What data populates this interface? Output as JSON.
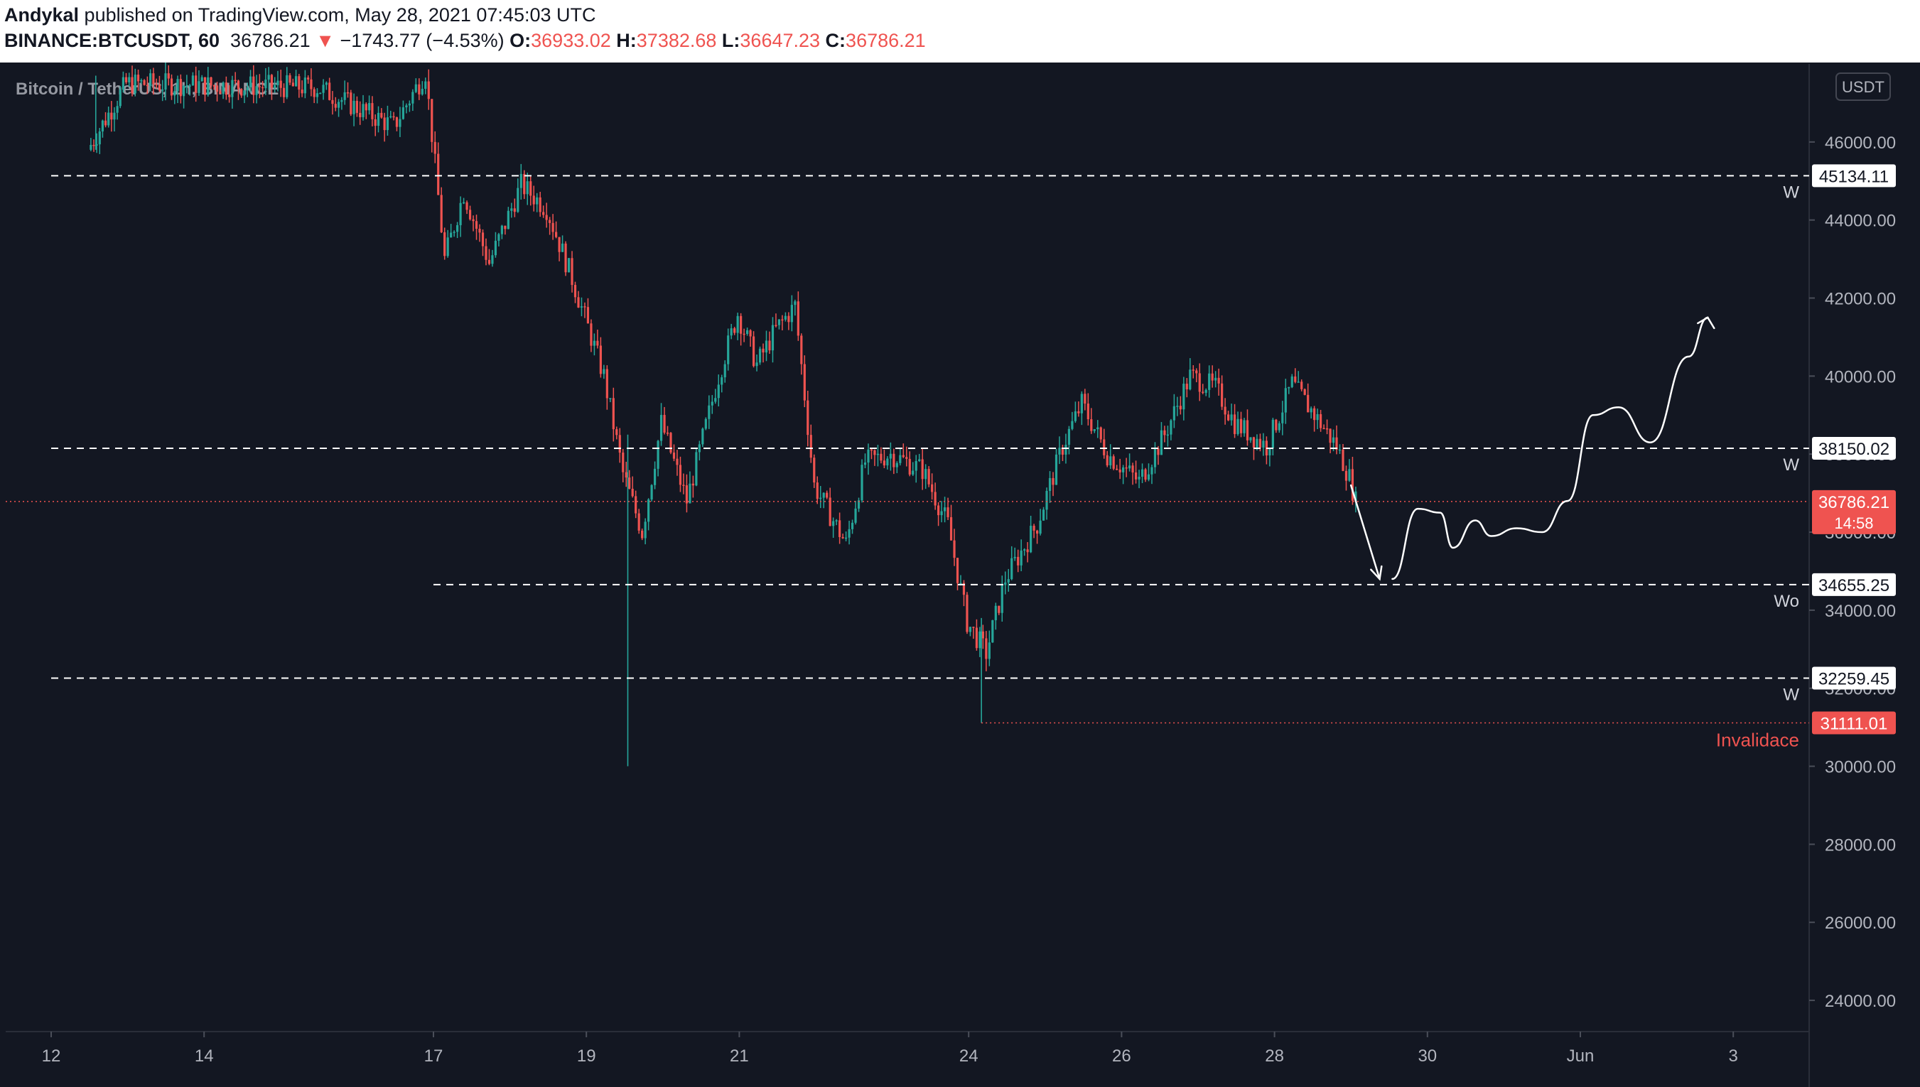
{
  "header": {
    "author": "Andykal",
    "published_text": " published on TradingView.com, May 28, 2021 07:45:03 UTC",
    "symbol": "BINANCE:BTCUSDT, 60",
    "last_price": "36786.21",
    "change_arrow": "▼",
    "change": "−1743.77 (−4.53%)",
    "o_label": "O:",
    "o_value": "36933.02",
    "h_label": "H:",
    "h_value": "37382.68",
    "l_label": "L:",
    "l_value": "36647.23",
    "c_label": "C:",
    "c_value": "36786.21"
  },
  "colors": {
    "background": "#131722",
    "up": "#26a69a",
    "down": "#ef5350",
    "level_line": "#ffffff",
    "axis_text": "#b2b5be",
    "invalidation": "#ef5350"
  },
  "chart_data": {
    "type": "candlestick",
    "title": "Bitcoin / TetherUS, 1h, BINANCE",
    "currency_label": "USDT",
    "ylim": [
      23200,
      48000
    ],
    "y_ticks": [
      24000,
      26000,
      28000,
      30000,
      32000,
      34000,
      36000,
      38000,
      40000,
      42000,
      44000,
      46000
    ],
    "y_tick_labels": [
      "24000.00",
      "26000.00",
      "28000.00",
      "30000.00",
      "32000.00",
      "34000.00",
      "36000.00",
      "38000.00",
      "40000.00",
      "42000.00",
      "44000.00",
      "46000.00"
    ],
    "x_ticks": [
      {
        "label": "12",
        "date": "2021-05-12"
      },
      {
        "label": "14",
        "date": "2021-05-14"
      },
      {
        "label": "17",
        "date": "2021-05-17"
      },
      {
        "label": "19",
        "date": "2021-05-19"
      },
      {
        "label": "21",
        "date": "2021-05-21"
      },
      {
        "label": "24",
        "date": "2021-05-24"
      },
      {
        "label": "26",
        "date": "2021-05-26"
      },
      {
        "label": "28",
        "date": "2021-05-28"
      },
      {
        "label": "30",
        "date": "2021-05-30"
      },
      {
        "label": "Jun",
        "date": "2021-06-01"
      },
      {
        "label": "3",
        "date": "2021-06-03"
      }
    ],
    "price_path": [
      [
        "2021-05-12 12:00",
        45800
      ],
      [
        "2021-05-13 00:00",
        47500
      ],
      [
        "2021-05-15 12:00",
        47400
      ],
      [
        "2021-05-16 12:00",
        46400
      ],
      [
        "2021-05-16 22:00",
        47800
      ],
      [
        "2021-05-17 04:00",
        43000
      ],
      [
        "2021-05-17 10:00",
        44700
      ],
      [
        "2021-05-17 18:00",
        42900
      ],
      [
        "2021-05-18 04:00",
        44900
      ],
      [
        "2021-05-18 12:00",
        44300
      ],
      [
        "2021-05-18 20:00",
        42500
      ],
      [
        "2021-05-19 06:00",
        40000
      ],
      [
        "2021-05-19 12:00",
        37500
      ],
      [
        "2021-05-19 18:00",
        36000
      ],
      [
        "2021-05-20 00:00",
        38800
      ],
      [
        "2021-05-20 08:00",
        36800
      ],
      [
        "2021-05-20 18:00",
        40000
      ],
      [
        "2021-05-21 00:00",
        41600
      ],
      [
        "2021-05-21 06:00",
        40300
      ],
      [
        "2021-05-21 12:00",
        41200
      ],
      [
        "2021-05-21 18:00",
        41800
      ],
      [
        "2021-05-22 00:00",
        37200
      ],
      [
        "2021-05-22 06:00",
        36300
      ],
      [
        "2021-05-22 10:00",
        35700
      ],
      [
        "2021-05-22 16:00",
        37800
      ],
      [
        "2021-05-23 00:00",
        38000
      ],
      [
        "2021-05-23 10:00",
        37600
      ],
      [
        "2021-05-23 18:00",
        36200
      ],
      [
        "2021-05-24 00:00",
        33700
      ],
      [
        "2021-05-24 06:00",
        32900
      ],
      [
        "2021-05-24 12:00",
        34800
      ],
      [
        "2021-05-24 22:00",
        36200
      ],
      [
        "2021-05-25 06:00",
        38200
      ],
      [
        "2021-05-25 12:00",
        39300
      ],
      [
        "2021-05-25 20:00",
        38000
      ],
      [
        "2021-05-26 06:00",
        37300
      ],
      [
        "2021-05-26 14:00",
        38500
      ],
      [
        "2021-05-26 22:00",
        40000
      ],
      [
        "2021-05-27 06:00",
        39700
      ],
      [
        "2021-05-27 12:00",
        38800
      ],
      [
        "2021-05-27 22:00",
        38200
      ],
      [
        "2021-05-28 06:00",
        39800
      ],
      [
        "2021-05-28 14:00",
        38900
      ],
      [
        "2021-05-28 20:00",
        38200
      ],
      [
        "2021-05-29 00:00",
        37400
      ],
      [
        "2021-05-29 02:00",
        36786.21
      ]
    ],
    "spikes": [
      {
        "date": "2021-05-12 14:00",
        "low": 45800,
        "high": 47700
      },
      {
        "date": "2021-05-19 13:00",
        "low": 30000,
        "high": 38500
      },
      {
        "date": "2021-05-24 04:00",
        "low": 31111.01,
        "high": 33800
      }
    ],
    "levels": [
      {
        "value": 45134.11,
        "label": "45134.11",
        "tag": "W",
        "start_date": "2021-05-12 00:00"
      },
      {
        "value": 38150.02,
        "label": "38150.02",
        "tag": "W",
        "start_date": "2021-05-12 00:00"
      },
      {
        "value": 34655.25,
        "label": "34655.25",
        "tag": "Wo",
        "start_date": "2021-05-17 00:00"
      },
      {
        "value": 32259.45,
        "label": "32259.45",
        "tag": "W",
        "start_date": "2021-05-12 00:00"
      }
    ],
    "current_price": {
      "value": 36786.21,
      "label": "36786.21",
      "countdown": "14:58"
    },
    "invalidation": {
      "value": 31111.01,
      "label": "31111.01",
      "text": "Invalidace",
      "start_date": "2021-05-24 04:00"
    },
    "projection_path": [
      [
        "2021-05-29 00:00",
        37200
      ],
      [
        "2021-05-29 09:00",
        34800
      ],
      [
        "2021-05-29 13:00",
        34800
      ],
      [
        "2021-05-29 21:00",
        36600
      ],
      [
        "2021-05-30 04:00",
        36500
      ],
      [
        "2021-05-30 08:00",
        35600
      ],
      [
        "2021-05-30 15:00",
        36300
      ],
      [
        "2021-05-30 20:00",
        35900
      ],
      [
        "2021-05-31 04:00",
        36100
      ],
      [
        "2021-05-31 12:00",
        36000
      ],
      [
        "2021-05-31 20:00",
        36800
      ],
      [
        "2021-06-01 04:00",
        39000
      ],
      [
        "2021-06-01 12:00",
        39200
      ],
      [
        "2021-06-01 22:00",
        38300
      ],
      [
        "2021-06-02 10:00",
        40500
      ],
      [
        "2021-06-02 16:00",
        41500
      ]
    ]
  }
}
